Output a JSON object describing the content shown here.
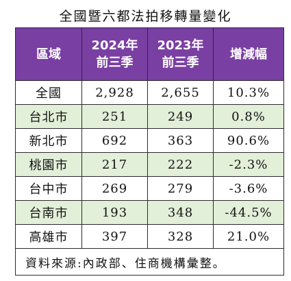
{
  "title": "全國暨六都法拍移轉量變化",
  "header": {
    "region": "區域",
    "col2024_line1": "2024年",
    "col2024_line2": "前三季",
    "col2023_line1": "2023年",
    "col2023_line2": "前三季",
    "change": "增減幅"
  },
  "rows": [
    {
      "region": "全國",
      "y2024": "2,928",
      "y2023": "2,655",
      "change": "10.3%"
    },
    {
      "region": "台北市",
      "y2024": "251",
      "y2023": "249",
      "change": "0.8%"
    },
    {
      "region": "新北市",
      "y2024": "692",
      "y2023": "363",
      "change": "90.6%"
    },
    {
      "region": "桃園市",
      "y2024": "217",
      "y2023": "222",
      "change": "-2.3%"
    },
    {
      "region": "台中市",
      "y2024": "269",
      "y2023": "279",
      "change": "-3.6%"
    },
    {
      "region": "台南市",
      "y2024": "193",
      "y2023": "348",
      "change": "-44.5%"
    },
    {
      "region": "高雄市",
      "y2024": "397",
      "y2023": "328",
      "change": "21.0%"
    }
  ],
  "source": "資料來源:內政部、住商機構彙整。",
  "colors": {
    "header_bg": "#7a3fa3",
    "alt_row_bg": "#e2efd9"
  }
}
